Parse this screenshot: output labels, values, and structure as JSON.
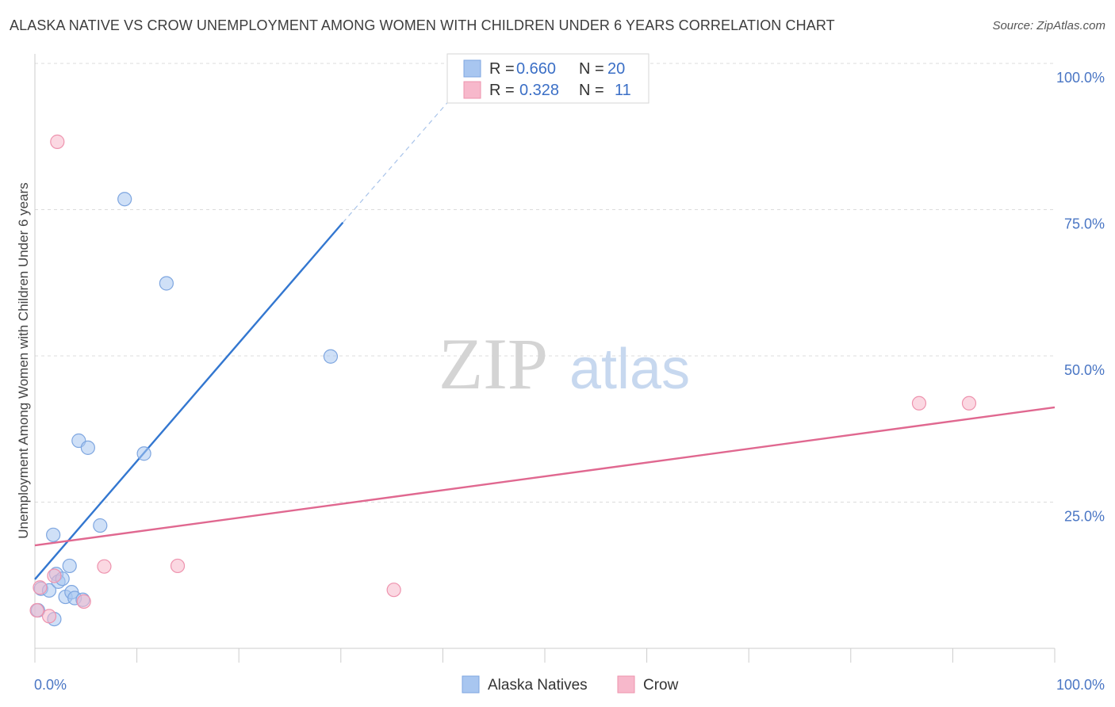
{
  "title": "ALASKA NATIVE VS CROW UNEMPLOYMENT AMONG WOMEN WITH CHILDREN UNDER 6 YEARS CORRELATION CHART",
  "source": "Source: ZipAtlas.com",
  "watermark": {
    "zip": "ZIP",
    "atlas": "atlas"
  },
  "chart_data": {
    "type": "scatter",
    "xlabel": "",
    "ylabel": "Unemployment Among Women with Children Under 6 years",
    "xlim": [
      0,
      100
    ],
    "ylim": [
      0,
      100
    ],
    "x_tick_labels": [
      "0.0%",
      "100.0%"
    ],
    "y_ticks": [
      25,
      50,
      75,
      100
    ],
    "y_tick_labels": [
      "25.0%",
      "50.0%",
      "75.0%",
      "100.0%"
    ],
    "grid": true,
    "legend": [
      {
        "name": "Alaska Natives",
        "r_label": "R =",
        "r": "0.660",
        "n_label": "N =",
        "n": "20",
        "color": "#a8c6f0",
        "stroke": "#7ea6e0"
      },
      {
        "name": "Crow",
        "r_label": "R =",
        "r": "0.328",
        "n_label": "N =",
        "n": "11",
        "color": "#f7b8cb",
        "stroke": "#ee93ae"
      }
    ],
    "series": [
      {
        "name": "Alaska Natives",
        "color": "#a8c6f0",
        "line_color": "#3377d0",
        "trend": {
          "x0": 0,
          "y0": 11.8,
          "x1": 30.2,
          "y1": 72.8,
          "dash_to_x": 43.8,
          "dash_to_y": 100
        },
        "points": [
          [
            0.6,
            10.2
          ],
          [
            1.4,
            9.9
          ],
          [
            1.8,
            19.4
          ],
          [
            1.9,
            5.0
          ],
          [
            2.1,
            12.7
          ],
          [
            2.3,
            11.4
          ],
          [
            2.7,
            11.9
          ],
          [
            3.0,
            8.8
          ],
          [
            3.4,
            14.1
          ],
          [
            3.6,
            9.6
          ],
          [
            3.9,
            8.6
          ],
          [
            4.3,
            35.5
          ],
          [
            4.7,
            8.3
          ],
          [
            5.2,
            34.3
          ],
          [
            6.4,
            21.0
          ],
          [
            8.8,
            76.8
          ],
          [
            10.7,
            33.3
          ],
          [
            12.9,
            62.4
          ],
          [
            29.0,
            49.9
          ],
          [
            0.3,
            6.5
          ]
        ]
      },
      {
        "name": "Crow",
        "color": "#f7b8cb",
        "line_color": "#e06890",
        "trend": {
          "x0": 0,
          "y0": 17.6,
          "x1": 100,
          "y1": 41.2
        },
        "points": [
          [
            0.2,
            6.5
          ],
          [
            0.5,
            10.4
          ],
          [
            1.4,
            5.5
          ],
          [
            1.9,
            12.4
          ],
          [
            2.2,
            86.6
          ],
          [
            4.8,
            8.0
          ],
          [
            6.8,
            14.0
          ],
          [
            14.0,
            14.1
          ],
          [
            35.2,
            10.0
          ],
          [
            86.7,
            41.9
          ],
          [
            91.6,
            41.9
          ]
        ]
      }
    ]
  }
}
